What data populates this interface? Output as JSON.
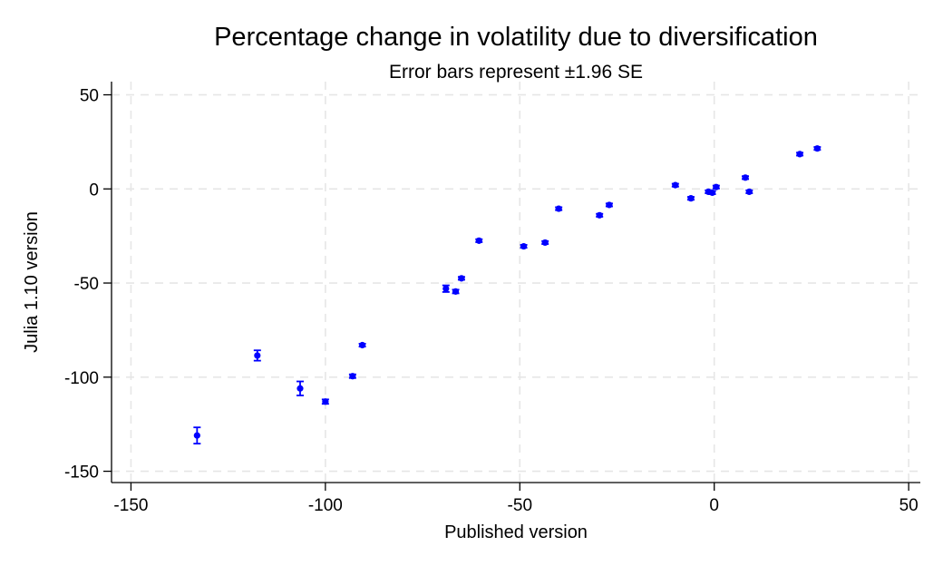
{
  "chart_data": {
    "type": "scatter",
    "title": "Percentage change in volatility due to diversification",
    "subtitle": "Error bars represent ±1.96 SE",
    "xlabel": "Published version",
    "ylabel": "Julia 1.10 version",
    "xlim": [
      -155,
      53
    ],
    "ylim": [
      -156,
      57
    ],
    "xticks": [
      -150,
      -100,
      -50,
      0,
      50
    ],
    "yticks": [
      50,
      0,
      -50,
      -100,
      -150
    ],
    "xtick_labels": [
      "-150",
      "-100",
      "-50",
      "0",
      "50"
    ],
    "ytick_labels": [
      "50",
      "0",
      "-50",
      "-100",
      "-150"
    ],
    "grid": true,
    "legend": "none",
    "marker_color": "#0000ff",
    "points": [
      {
        "x": -133,
        "y": -131,
        "se": 2.2
      },
      {
        "x": -117.5,
        "y": -88.5,
        "se": 1.4
      },
      {
        "x": -106.5,
        "y": -106,
        "se": 1.9
      },
      {
        "x": -100,
        "y": -113,
        "se": 0.6
      },
      {
        "x": -93,
        "y": -99.5,
        "se": 0.5
      },
      {
        "x": -90.5,
        "y": -83,
        "se": 0.4
      },
      {
        "x": -69,
        "y": -53,
        "se": 0.9
      },
      {
        "x": -66.5,
        "y": -54.5,
        "se": 0.5
      },
      {
        "x": -65,
        "y": -47.5,
        "se": 0.4
      },
      {
        "x": -60.5,
        "y": -27.5,
        "se": 0.4
      },
      {
        "x": -49,
        "y": -30.5,
        "se": 0.4
      },
      {
        "x": -43.5,
        "y": -28.5,
        "se": 0.4
      },
      {
        "x": -40,
        "y": -10.5,
        "se": 0.4
      },
      {
        "x": -29.5,
        "y": -14,
        "se": 0.4
      },
      {
        "x": -27,
        "y": -8.5,
        "se": 0.4
      },
      {
        "x": -10,
        "y": 2,
        "se": 0.4
      },
      {
        "x": -6,
        "y": -5,
        "se": 0.4
      },
      {
        "x": -1.5,
        "y": -1.5,
        "se": 0.4
      },
      {
        "x": -0.5,
        "y": -2,
        "se": 0.4
      },
      {
        "x": 0.5,
        "y": 1,
        "se": 0.4
      },
      {
        "x": 8,
        "y": 6,
        "se": 0.4
      },
      {
        "x": 9,
        "y": -1.5,
        "se": 0.4
      },
      {
        "x": 22,
        "y": 18.5,
        "se": 0.4
      },
      {
        "x": 26.5,
        "y": 21.5,
        "se": 0.4
      }
    ]
  }
}
